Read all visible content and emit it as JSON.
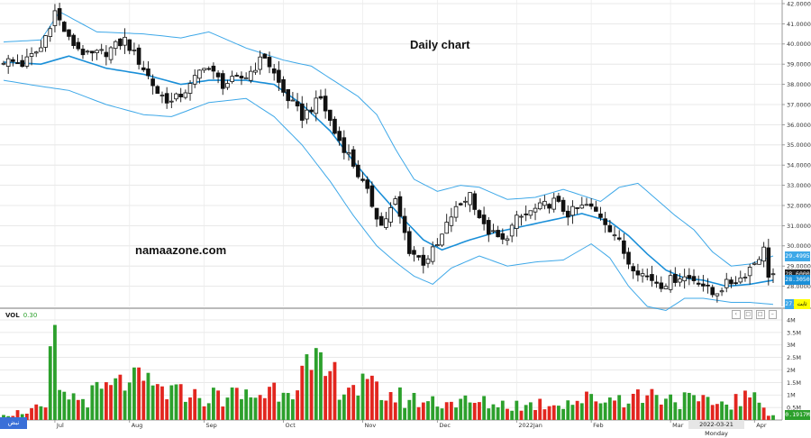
{
  "title": "Daily chart",
  "watermark": "namaazone.com",
  "colors": {
    "up": "#2ca02c",
    "down": "#e2261f",
    "band": "#3ea8e8",
    "mid": "#1a8fd8"
  },
  "price_tags": [
    {
      "label": "29.4995",
      "color": "#3ea8e8",
      "price": 29.5
    },
    {
      "label": "28.6000",
      "color": "#222222",
      "price": 28.6
    },
    {
      "label": "28.3050",
      "color": "#1a8fd8",
      "price": 28.3
    },
    {
      "label": "27.1105",
      "color": "#3ea8e8",
      "price": 27.1
    }
  ],
  "volume_label": "VOL",
  "volume_value": "0.30",
  "volume_last_tag": "0.1917M",
  "cursor_date": "2022-03-21 Monday",
  "yellow_tag": "ثابت",
  "logo_text": "نبض",
  "pane_buttons": [
    "‹",
    "□",
    "□",
    "–"
  ],
  "chart_data": {
    "type": "candlestick",
    "title": "Daily chart",
    "price_axis": {
      "ticks": [
        "42.0000",
        "41.0000",
        "40.0000",
        "39.0000",
        "38.0000",
        "37.0000",
        "36.0000",
        "35.0000",
        "34.0000",
        "33.0000",
        "32.0000",
        "31.0000",
        "30.0000",
        "29.0000",
        "28.0000"
      ],
      "ylim": [
        27,
        42
      ]
    },
    "volume_axis": {
      "ticks": [
        "4M",
        "3.5M",
        "3M",
        "2.5M",
        "2M",
        "1.5M",
        "1M",
        "0.5M"
      ],
      "ylim": [
        0,
        4
      ]
    },
    "x_tick_labels": [
      "Jul",
      "Aug",
      "Sep",
      "Oct",
      "Nov",
      "Dec",
      "2022Jan",
      "Feb",
      "Mar",
      "Apr"
    ],
    "x_tick_index": [
      11,
      27,
      43,
      60,
      77,
      93,
      110,
      126,
      143,
      161
    ],
    "n_bars": 166,
    "close_anchors": [
      [
        0,
        39.2
      ],
      [
        4,
        39.0
      ],
      [
        8,
        39.8
      ],
      [
        11,
        41.6
      ],
      [
        14,
        40.2
      ],
      [
        18,
        39.4
      ],
      [
        22,
        39.6
      ],
      [
        26,
        40.2
      ],
      [
        30,
        38.8
      ],
      [
        33,
        37.6
      ],
      [
        36,
        37.1
      ],
      [
        40,
        37.9
      ],
      [
        43,
        39.0
      ],
      [
        47,
        38.0
      ],
      [
        52,
        38.4
      ],
      [
        56,
        39.4
      ],
      [
        60,
        37.6
      ],
      [
        64,
        36.4
      ],
      [
        68,
        37.3
      ],
      [
        71,
        35.6
      ],
      [
        74,
        34.5
      ],
      [
        78,
        32.6
      ],
      [
        81,
        31.0
      ],
      [
        84,
        32.2
      ],
      [
        87,
        29.8
      ],
      [
        90,
        29.2
      ],
      [
        93,
        30.0
      ],
      [
        96,
        31.5
      ],
      [
        100,
        32.6
      ],
      [
        103,
        30.9
      ],
      [
        107,
        30.2
      ],
      [
        110,
        31.3
      ],
      [
        114,
        31.8
      ],
      [
        118,
        32.2
      ],
      [
        121,
        31.6
      ],
      [
        125,
        32.0
      ],
      [
        128,
        31.5
      ],
      [
        131,
        30.6
      ],
      [
        134,
        29.2
      ],
      [
        137,
        28.6
      ],
      [
        141,
        28.1
      ],
      [
        145,
        28.5
      ],
      [
        149,
        28.3
      ],
      [
        152,
        27.6
      ],
      [
        155,
        28.1
      ],
      [
        158,
        28.4
      ],
      [
        161,
        29.2
      ],
      [
        163,
        29.8
      ],
      [
        164,
        28.6
      ],
      [
        165,
        28.6
      ]
    ],
    "bollinger": {
      "upper_anchors": [
        [
          0,
          40.1
        ],
        [
          8,
          40.2
        ],
        [
          12,
          41.6
        ],
        [
          20,
          40.6
        ],
        [
          30,
          40.5
        ],
        [
          38,
          40.3
        ],
        [
          44,
          40.6
        ],
        [
          52,
          39.8
        ],
        [
          60,
          39.2
        ],
        [
          66,
          38.9
        ],
        [
          72,
          38.0
        ],
        [
          76,
          37.4
        ],
        [
          80,
          36.5
        ],
        [
          84,
          34.8
        ],
        [
          88,
          33.3
        ],
        [
          93,
          32.7
        ],
        [
          98,
          33.0
        ],
        [
          102,
          32.9
        ],
        [
          108,
          32.3
        ],
        [
          114,
          32.4
        ],
        [
          120,
          32.8
        ],
        [
          128,
          32.2
        ],
        [
          132,
          32.9
        ],
        [
          136,
          33.1
        ],
        [
          140,
          32.3
        ],
        [
          144,
          31.5
        ],
        [
          148,
          30.8
        ],
        [
          152,
          29.7
        ],
        [
          156,
          29.0
        ],
        [
          160,
          29.1
        ],
        [
          165,
          29.5
        ]
      ],
      "lower_anchors": [
        [
          0,
          38.2
        ],
        [
          8,
          37.9
        ],
        [
          14,
          37.7
        ],
        [
          22,
          37.0
        ],
        [
          30,
          36.5
        ],
        [
          36,
          36.4
        ],
        [
          44,
          37.1
        ],
        [
          52,
          37.3
        ],
        [
          58,
          36.4
        ],
        [
          64,
          35.0
        ],
        [
          70,
          33.2
        ],
        [
          75,
          31.5
        ],
        [
          80,
          30.0
        ],
        [
          84,
          29.2
        ],
        [
          88,
          28.5
        ],
        [
          92,
          28.1
        ],
        [
          96,
          28.9
        ],
        [
          102,
          29.5
        ],
        [
          108,
          29.0
        ],
        [
          114,
          29.2
        ],
        [
          120,
          29.3
        ],
        [
          126,
          30.1
        ],
        [
          130,
          29.4
        ],
        [
          134,
          28.0
        ],
        [
          138,
          27.0
        ],
        [
          142,
          26.8
        ],
        [
          146,
          27.4
        ],
        [
          150,
          27.4
        ],
        [
          156,
          27.2
        ],
        [
          160,
          27.2
        ],
        [
          165,
          27.1
        ]
      ],
      "mid_anchors": [
        [
          0,
          39.1
        ],
        [
          8,
          39.0
        ],
        [
          14,
          39.4
        ],
        [
          22,
          38.8
        ],
        [
          30,
          38.5
        ],
        [
          38,
          38.0
        ],
        [
          44,
          38.2
        ],
        [
          52,
          38.2
        ],
        [
          58,
          38.0
        ],
        [
          64,
          37.0
        ],
        [
          70,
          35.7
        ],
        [
          75,
          34.2
        ],
        [
          80,
          32.8
        ],
        [
          85,
          31.5
        ],
        [
          90,
          30.3
        ],
        [
          94,
          29.8
        ],
        [
          100,
          30.3
        ],
        [
          106,
          30.7
        ],
        [
          112,
          31.0
        ],
        [
          118,
          31.3
        ],
        [
          124,
          31.6
        ],
        [
          130,
          31.2
        ],
        [
          134,
          30.5
        ],
        [
          138,
          29.6
        ],
        [
          142,
          28.8
        ],
        [
          146,
          28.4
        ],
        [
          150,
          28.3
        ],
        [
          155,
          28.0
        ],
        [
          160,
          28.1
        ],
        [
          165,
          28.3
        ]
      ]
    },
    "volume_anchors": [
      [
        0,
        0.2
      ],
      [
        9,
        0.5
      ],
      [
        11,
        3.8
      ],
      [
        12,
        1.2
      ],
      [
        16,
        0.8
      ],
      [
        27,
        1.5
      ],
      [
        40,
        0.9
      ],
      [
        55,
        1.0
      ],
      [
        66,
        2.0
      ],
      [
        75,
        1.4
      ],
      [
        87,
        0.8
      ],
      [
        100,
        0.7
      ],
      [
        112,
        0.6
      ],
      [
        130,
        0.9
      ],
      [
        140,
        1.0
      ],
      [
        152,
        0.6
      ],
      [
        160,
        0.9
      ],
      [
        165,
        0.19
      ]
    ]
  }
}
